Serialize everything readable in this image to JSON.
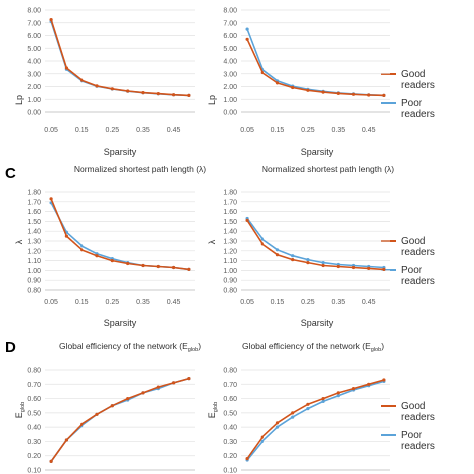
{
  "colors": {
    "good": "#d1541b",
    "poor": "#5ba3d9"
  },
  "legend": {
    "good_line1": "Good",
    "good_line2": "readers",
    "poor_line1": "Poor",
    "poor_line2": "readers"
  },
  "panel_letters": {
    "c": "C",
    "d": "D"
  },
  "rows": {
    "lp": {
      "ylabel": "Lp",
      "xlabel": "Sparsity",
      "yticks": [
        "0.00",
        "1.00",
        "2.00",
        "3.00",
        "4.00",
        "5.00",
        "6.00",
        "7.00",
        "8.00"
      ],
      "xticks": [
        "0.05",
        "0.15",
        "0.25",
        "0.35",
        "0.45"
      ]
    },
    "lambda": {
      "title": "Normalized shortest path length (λ)",
      "ylabel": "λ",
      "xlabel": "Sparsity",
      "yticks": [
        "0.80",
        "0.90",
        "1.00",
        "1.10",
        "1.20",
        "1.30",
        "1.40",
        "1.50",
        "1.60",
        "1.70",
        "1.80"
      ],
      "xticks": [
        "0.05",
        "0.15",
        "0.25",
        "0.35",
        "0.45"
      ]
    },
    "eglob": {
      "title": "Global efficiency of the network (E",
      "title_sub": "glob",
      "title_end": ")",
      "ylabel": "E",
      "ylabel_sub": "glob",
      "yticks": [
        "0.10",
        "0.20",
        "0.30",
        "0.40",
        "0.50",
        "0.60",
        "0.70",
        "0.80"
      ]
    }
  },
  "chart_data": [
    {
      "type": "line",
      "panel": "top-left",
      "title": "",
      "xlabel": "Sparsity",
      "ylabel": "Lp",
      "ylim": [
        0,
        8
      ],
      "grid": true,
      "x": [
        0.05,
        0.1,
        0.15,
        0.2,
        0.25,
        0.3,
        0.35,
        0.4,
        0.45,
        0.5
      ],
      "series": [
        {
          "name": "Good readers",
          "values": [
            7.25,
            3.45,
            2.5,
            2.05,
            1.82,
            1.65,
            1.52,
            1.44,
            1.36,
            1.3
          ]
        },
        {
          "name": "Poor readers",
          "values": [
            7.1,
            3.35,
            2.45,
            2.02,
            1.8,
            1.63,
            1.51,
            1.43,
            1.35,
            1.3
          ]
        }
      ]
    },
    {
      "type": "line",
      "panel": "top-right",
      "title": "",
      "xlabel": "Sparsity",
      "ylabel": "Lp",
      "ylim": [
        0,
        8
      ],
      "grid": true,
      "legend": "right",
      "x": [
        0.05,
        0.1,
        0.15,
        0.2,
        0.25,
        0.3,
        0.35,
        0.4,
        0.45,
        0.5
      ],
      "series": [
        {
          "name": "Good readers",
          "values": [
            5.7,
            3.1,
            2.28,
            1.92,
            1.7,
            1.56,
            1.46,
            1.39,
            1.33,
            1.3
          ]
        },
        {
          "name": "Poor readers",
          "values": [
            6.5,
            3.35,
            2.45,
            2.03,
            1.78,
            1.62,
            1.5,
            1.42,
            1.35,
            1.3
          ]
        }
      ]
    },
    {
      "type": "line",
      "panel": "C-left",
      "title": "Normalized shortest path length (λ)",
      "xlabel": "Sparsity",
      "ylabel": "λ",
      "ylim": [
        0.8,
        1.8
      ],
      "grid": true,
      "x": [
        0.05,
        0.1,
        0.15,
        0.2,
        0.25,
        0.3,
        0.35,
        0.4,
        0.45,
        0.5
      ],
      "series": [
        {
          "name": "Good readers",
          "values": [
            1.73,
            1.35,
            1.21,
            1.15,
            1.1,
            1.07,
            1.05,
            1.04,
            1.03,
            1.01
          ]
        },
        {
          "name": "Poor readers",
          "values": [
            1.69,
            1.39,
            1.25,
            1.17,
            1.12,
            1.08,
            1.05,
            1.04,
            1.03,
            1.01
          ]
        }
      ]
    },
    {
      "type": "line",
      "panel": "C-right",
      "title": "Normalized shortest path length (λ)",
      "xlabel": "Sparsity",
      "ylabel": "λ",
      "ylim": [
        0.8,
        1.8
      ],
      "grid": true,
      "legend": "right",
      "x": [
        0.05,
        0.1,
        0.15,
        0.2,
        0.25,
        0.3,
        0.35,
        0.4,
        0.45,
        0.5
      ],
      "series": [
        {
          "name": "Good readers",
          "values": [
            1.51,
            1.27,
            1.16,
            1.11,
            1.08,
            1.05,
            1.04,
            1.03,
            1.02,
            1.01
          ]
        },
        {
          "name": "Poor readers",
          "values": [
            1.53,
            1.32,
            1.21,
            1.15,
            1.11,
            1.08,
            1.06,
            1.05,
            1.04,
            1.03
          ]
        }
      ]
    },
    {
      "type": "line",
      "panel": "D-left",
      "title": "Global efficiency of the network (Eglob)",
      "xlabel": "",
      "ylabel": "Eglob",
      "ylim": [
        0.1,
        0.8
      ],
      "grid": true,
      "x": [
        0.05,
        0.1,
        0.15,
        0.2,
        0.25,
        0.3,
        0.35,
        0.4,
        0.45,
        0.5
      ],
      "series": [
        {
          "name": "Good readers",
          "values": [
            0.16,
            0.31,
            0.42,
            0.49,
            0.55,
            0.6,
            0.64,
            0.68,
            0.71,
            0.74
          ]
        },
        {
          "name": "Poor readers",
          "values": [
            0.16,
            0.31,
            0.41,
            0.49,
            0.55,
            0.59,
            0.64,
            0.67,
            0.71,
            0.74
          ]
        }
      ]
    },
    {
      "type": "line",
      "panel": "D-right",
      "title": "Global efficiency of the network (Eglob)",
      "xlabel": "",
      "ylabel": "Eglob",
      "ylim": [
        0.1,
        0.8
      ],
      "grid": true,
      "legend": "right",
      "x": [
        0.05,
        0.1,
        0.15,
        0.2,
        0.25,
        0.3,
        0.35,
        0.4,
        0.45,
        0.5
      ],
      "series": [
        {
          "name": "Good readers",
          "values": [
            0.18,
            0.33,
            0.43,
            0.5,
            0.56,
            0.6,
            0.64,
            0.67,
            0.7,
            0.73
          ]
        },
        {
          "name": "Poor readers",
          "values": [
            0.17,
            0.3,
            0.4,
            0.47,
            0.53,
            0.58,
            0.62,
            0.66,
            0.69,
            0.72
          ]
        }
      ]
    }
  ]
}
